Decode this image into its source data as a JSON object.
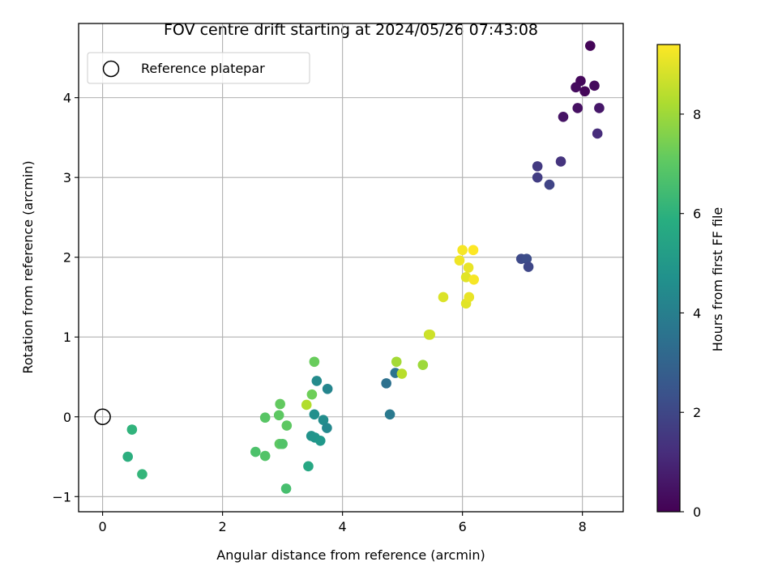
{
  "chart_data": {
    "type": "scatter",
    "title": "FOV centre drift starting at 2024/05/26 07:43:08",
    "xlabel": "Angular distance from reference (arcmin)",
    "ylabel": "Rotation from reference (arcmin)",
    "xlim": [
      -0.4,
      8.68
    ],
    "ylim": [
      -1.19,
      4.93
    ],
    "xticks": [
      0,
      2,
      4,
      6,
      8
    ],
    "xtick_labels": [
      "0",
      "2",
      "4",
      "6",
      "8"
    ],
    "yticks": [
      -1,
      0,
      1,
      2,
      3,
      4
    ],
    "ytick_labels": [
      "−1",
      "0",
      "1",
      "2",
      "3",
      "4"
    ],
    "grid": true,
    "legend": {
      "position": "top-left",
      "entries": [
        "Reference platepar"
      ]
    },
    "colorbar": {
      "label": "Hours from first FF file",
      "colormap": "viridis",
      "range": [
        0,
        9.4
      ],
      "ticks": [
        0,
        2,
        4,
        6,
        8
      ],
      "tick_labels": [
        "0",
        "2",
        "4",
        "6",
        "8"
      ]
    },
    "reference_point": {
      "x": 0,
      "y": 0
    },
    "points": [
      {
        "x": 8.13,
        "y": 4.65,
        "h": 0.1
      },
      {
        "x": 7.97,
        "y": 4.21,
        "h": 0.2
      },
      {
        "x": 7.89,
        "y": 4.13,
        "h": 0.3
      },
      {
        "x": 8.04,
        "y": 4.08,
        "h": 0.15
      },
      {
        "x": 8.2,
        "y": 4.15,
        "h": 0.25
      },
      {
        "x": 7.92,
        "y": 3.87,
        "h": 0.4
      },
      {
        "x": 8.28,
        "y": 3.87,
        "h": 0.6
      },
      {
        "x": 7.68,
        "y": 3.76,
        "h": 0.5
      },
      {
        "x": 8.25,
        "y": 3.55,
        "h": 1.2
      },
      {
        "x": 7.64,
        "y": 3.2,
        "h": 1.4
      },
      {
        "x": 7.25,
        "y": 3.14,
        "h": 1.6
      },
      {
        "x": 7.25,
        "y": 3.0,
        "h": 1.7
      },
      {
        "x": 7.45,
        "y": 2.91,
        "h": 1.9
      },
      {
        "x": 6.98,
        "y": 1.98,
        "h": 2.1
      },
      {
        "x": 7.07,
        "y": 1.98,
        "h": 2.2
      },
      {
        "x": 7.1,
        "y": 1.88,
        "h": 2.0
      },
      {
        "x": 4.73,
        "y": 0.42,
        "h": 3.5
      },
      {
        "x": 4.88,
        "y": 0.55,
        "h": 3.6
      },
      {
        "x": 4.79,
        "y": 0.03,
        "h": 3.8
      },
      {
        "x": 3.75,
        "y": 0.35,
        "h": 4.3
      },
      {
        "x": 3.57,
        "y": 0.45,
        "h": 4.5
      },
      {
        "x": 3.53,
        "y": 0.03,
        "h": 4.7
      },
      {
        "x": 3.68,
        "y": -0.04,
        "h": 4.6
      },
      {
        "x": 3.74,
        "y": -0.14,
        "h": 4.4
      },
      {
        "x": 3.48,
        "y": -0.24,
        "h": 4.8
      },
      {
        "x": 3.54,
        "y": -0.26,
        "h": 4.9
      },
      {
        "x": 3.63,
        "y": -0.3,
        "h": 5.0
      },
      {
        "x": 3.43,
        "y": -0.62,
        "h": 5.6
      },
      {
        "x": 0.49,
        "y": -0.16,
        "h": 6.1
      },
      {
        "x": 0.42,
        "y": -0.5,
        "h": 5.9
      },
      {
        "x": 0.66,
        "y": -0.72,
        "h": 6.2
      },
      {
        "x": 3.53,
        "y": 0.69,
        "h": 7.2
      },
      {
        "x": 3.49,
        "y": 0.28,
        "h": 7.3
      },
      {
        "x": 3.4,
        "y": 0.15,
        "h": 8.3
      },
      {
        "x": 2.96,
        "y": 0.16,
        "h": 7.1
      },
      {
        "x": 2.94,
        "y": 0.02,
        "h": 7.0
      },
      {
        "x": 2.71,
        "y": -0.01,
        "h": 6.9
      },
      {
        "x": 3.07,
        "y": -0.11,
        "h": 7.0
      },
      {
        "x": 2.95,
        "y": -0.34,
        "h": 7.0
      },
      {
        "x": 3.0,
        "y": -0.34,
        "h": 6.8
      },
      {
        "x": 2.55,
        "y": -0.44,
        "h": 6.7
      },
      {
        "x": 2.71,
        "y": -0.49,
        "h": 6.8
      },
      {
        "x": 3.06,
        "y": -0.9,
        "h": 6.6
      },
      {
        "x": 4.9,
        "y": 0.69,
        "h": 8.1
      },
      {
        "x": 4.99,
        "y": 0.54,
        "h": 8.4
      },
      {
        "x": 5.34,
        "y": 0.65,
        "h": 8.0
      },
      {
        "x": 5.44,
        "y": 1.03,
        "h": 8.6
      },
      {
        "x": 5.46,
        "y": 1.03,
        "h": 8.7
      },
      {
        "x": 5.68,
        "y": 1.5,
        "h": 8.9
      },
      {
        "x": 6.06,
        "y": 1.42,
        "h": 9.0
      },
      {
        "x": 6.11,
        "y": 1.5,
        "h": 9.1
      },
      {
        "x": 6.06,
        "y": 1.75,
        "h": 9.0
      },
      {
        "x": 6.19,
        "y": 1.72,
        "h": 9.3
      },
      {
        "x": 6.1,
        "y": 1.87,
        "h": 9.1
      },
      {
        "x": 5.95,
        "y": 1.96,
        "h": 9.2
      },
      {
        "x": 6.0,
        "y": 2.09,
        "h": 9.3
      },
      {
        "x": 6.18,
        "y": 2.09,
        "h": 9.4
      }
    ]
  }
}
